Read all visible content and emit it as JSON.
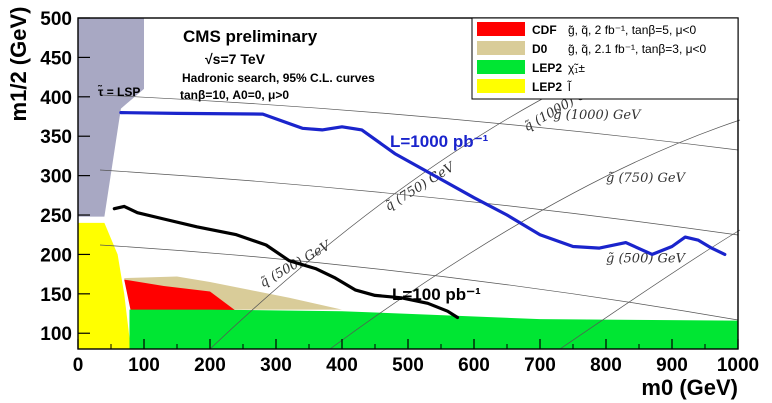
{
  "chart_data": {
    "type": "line",
    "xlabel": "m0 (GeV)",
    "ylabel": "m1/2 (GeV)",
    "xlim": [
      0,
      1000
    ],
    "ylim": [
      80,
      500
    ],
    "x_ticks": [
      "0",
      "100",
      "200",
      "300",
      "400",
      "500",
      "600",
      "700",
      "800",
      "900",
      "1000"
    ],
    "y_ticks": [
      "100",
      "150",
      "200",
      "250",
      "300",
      "350",
      "400",
      "450",
      "500"
    ],
    "annotations": {
      "title": "CMS preliminary",
      "energy": "√s=7 TeV",
      "search": "Hadronic search, 95% C.L. curves",
      "params": "tanβ=10, A0=0, μ>0",
      "lsp_region": "τ̃ = LSP"
    },
    "legend": [
      {
        "label": "CDF",
        "desc": "g̃, q̃,   2 fb⁻¹,   tanβ=5,   μ<0",
        "color": "#ff0000"
      },
      {
        "label": "D0",
        "desc": "g̃, q̃,   2.1 fb⁻¹,   tanβ=3,   μ<0",
        "color": "#d9cc99"
      },
      {
        "label": "LEP2",
        "desc": "χ̃₁±",
        "color": "#00e633"
      },
      {
        "label": "LEP2",
        "desc": "l̃",
        "color": "#ffff00"
      }
    ],
    "series": [
      {
        "name": "L=1000 pb⁻¹",
        "color": "#1a24cc",
        "points": [
          [
            65,
            380
          ],
          [
            150,
            379
          ],
          [
            280,
            378
          ],
          [
            340,
            360
          ],
          [
            370,
            358
          ],
          [
            400,
            362
          ],
          [
            430,
            358
          ],
          [
            480,
            328
          ],
          [
            540,
            300
          ],
          [
            600,
            272
          ],
          [
            650,
            250
          ],
          [
            700,
            225
          ],
          [
            750,
            210
          ],
          [
            790,
            208
          ],
          [
            830,
            215
          ],
          [
            870,
            200
          ],
          [
            900,
            210
          ],
          [
            920,
            222
          ],
          [
            940,
            218
          ],
          [
            960,
            208
          ],
          [
            980,
            200
          ]
        ]
      },
      {
        "name": "L=100 pb⁻¹",
        "color": "#000000",
        "points": [
          [
            55,
            258
          ],
          [
            70,
            261
          ],
          [
            90,
            253
          ],
          [
            130,
            245
          ],
          [
            180,
            235
          ],
          [
            240,
            225
          ],
          [
            285,
            212
          ],
          [
            320,
            192
          ],
          [
            360,
            182
          ],
          [
            390,
            170
          ],
          [
            420,
            155
          ],
          [
            450,
            148
          ],
          [
            490,
            145
          ],
          [
            530,
            138
          ],
          [
            560,
            128
          ],
          [
            575,
            120
          ]
        ]
      }
    ],
    "contour_labels": [
      {
        "text": "g̃ (1000) GeV",
        "x": 720,
        "y": 372,
        "angle": 0
      },
      {
        "text": "q̃ (1000) GeV",
        "x": 680,
        "y": 356,
        "angle": -30
      },
      {
        "text": "g̃ (750) GeV",
        "x": 800,
        "y": 292,
        "angle": 0
      },
      {
        "text": "q̃ (750) GeV",
        "x": 470,
        "y": 255,
        "angle": -32
      },
      {
        "text": "g̃ (500) GeV",
        "x": 800,
        "y": 190,
        "angle": 0
      },
      {
        "text": "q̃ (500) GeV",
        "x": 280,
        "y": 158,
        "angle": -30
      }
    ],
    "regions": [
      {
        "name": "stau LSP",
        "color": "#a8a8c3",
        "points": [
          [
            0,
            500
          ],
          [
            100,
            500
          ],
          [
            100,
            410
          ],
          [
            65,
            385
          ],
          [
            40,
            248
          ],
          [
            0,
            248
          ]
        ]
      },
      {
        "name": "LEP2 slepton",
        "color": "#ffff00",
        "points": [
          [
            0,
            240
          ],
          [
            40,
            240
          ],
          [
            60,
            200
          ],
          [
            70,
            150
          ],
          [
            80,
            80
          ],
          [
            0,
            80
          ]
        ]
      },
      {
        "name": "D0",
        "color": "#d9cc99",
        "points": [
          [
            70,
            170
          ],
          [
            150,
            172
          ],
          [
            200,
            165
          ],
          [
            260,
            155
          ],
          [
            320,
            145
          ],
          [
            400,
            130
          ],
          [
            80,
            130
          ]
        ]
      },
      {
        "name": "CDF",
        "color": "#ff0000",
        "points": [
          [
            70,
            168
          ],
          [
            130,
            160
          ],
          [
            200,
            153
          ],
          [
            240,
            128
          ],
          [
            80,
            128
          ]
        ]
      },
      {
        "name": "LEP2 chargino",
        "color": "#00e633",
        "points": [
          [
            78,
            130
          ],
          [
            200,
            130
          ],
          [
            400,
            128
          ],
          [
            700,
            118
          ],
          [
            1000,
            116
          ],
          [
            1000,
            80
          ],
          [
            78,
            80
          ]
        ]
      }
    ]
  },
  "labels": {
    "lumi_1000": "L=1000 pb⁻¹",
    "lumi_100": "L=100 pb⁻¹"
  }
}
